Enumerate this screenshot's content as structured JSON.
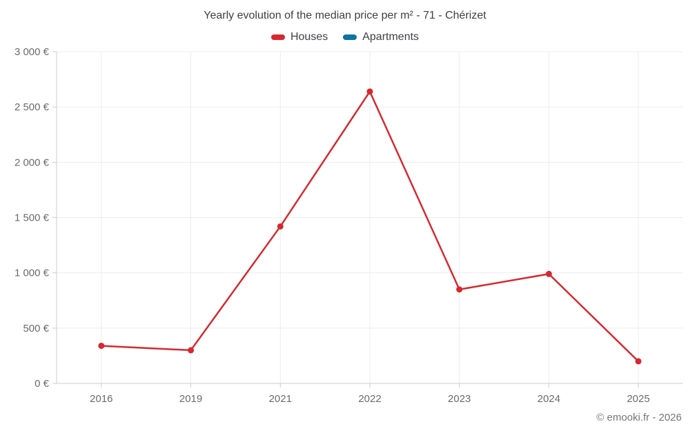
{
  "page": {
    "title": "Yearly evolution of the median price per m² - 71 - Chérizet",
    "footer": "© emooki.fr - 2026"
  },
  "legend": {
    "items": [
      {
        "label": "Houses",
        "color": "#d7282f"
      },
      {
        "label": "Apartments",
        "color": "#0e73a5"
      }
    ]
  },
  "chart_data": {
    "type": "line",
    "title": "Yearly evolution of the median price per m² - 71 - Chérizet",
    "categories": [
      "2016",
      "2019",
      "2021",
      "2022",
      "2023",
      "2024",
      "2025"
    ],
    "series": [
      {
        "name": "Houses",
        "color": "#d7282f",
        "values": [
          340,
          300,
          1420,
          2640,
          850,
          990,
          200
        ]
      },
      {
        "name": "Apartments",
        "color": "#0e73a5",
        "values": []
      }
    ],
    "xlabel": "",
    "ylabel": "",
    "ylim": [
      0,
      3000
    ],
    "ytick_step": 500,
    "ytick_labels": [
      "0 €",
      "500 €",
      "1 000 €",
      "1 500 €",
      "2 000 €",
      "2 500 €",
      "3 000 €"
    ],
    "currency": "EUR",
    "grid": true,
    "legend_position": "top"
  },
  "colors": {
    "background": "#ffffff",
    "grid": "#ececec",
    "axis": "#cccccc",
    "title_text": "#3f3f44",
    "tick_text": "#6a6a6e",
    "footer_text": "#76767a",
    "houses": "#d7282f",
    "apartments": "#0e73a5"
  }
}
